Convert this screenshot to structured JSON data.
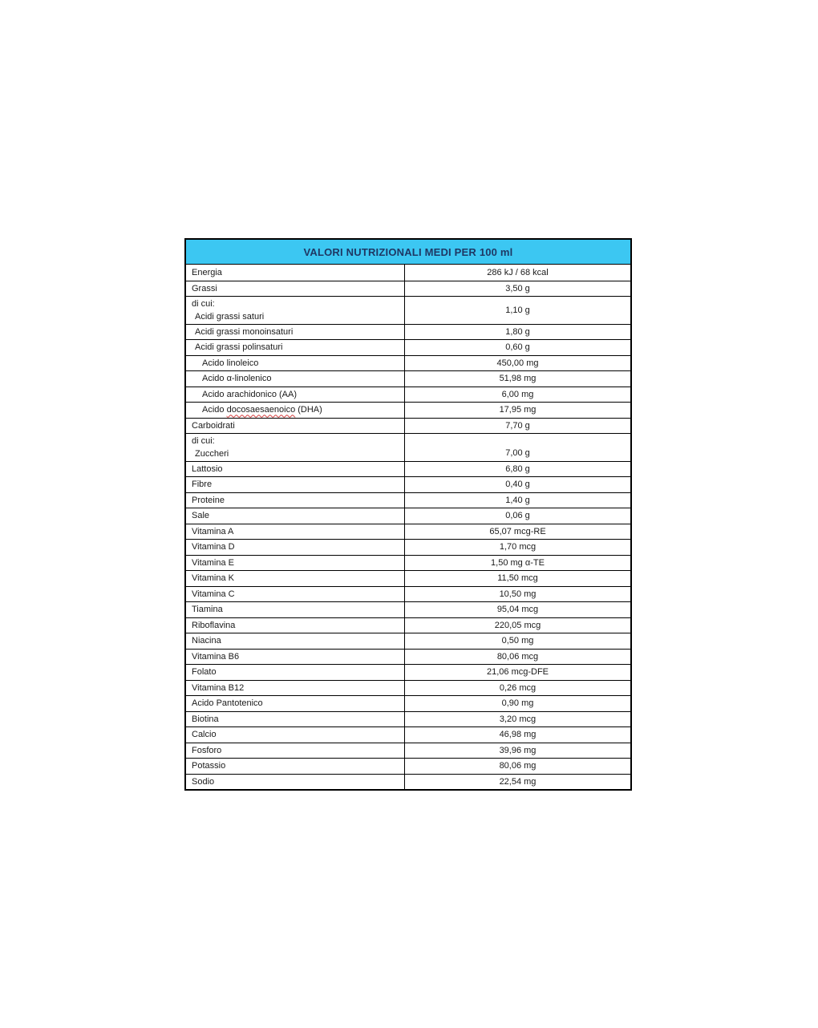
{
  "document": {
    "background": "#ffffff"
  },
  "table": {
    "title": "VALORI NUTRIZIONALI MEDI PER 100 ml",
    "colors": {
      "header_background": "#3cc7f2",
      "header_text": "#1f3864",
      "body_text": "#1a1a1a",
      "border": "#000000",
      "spellcheck_underline": "#d43c3c"
    },
    "rows": [
      {
        "label": "Energia",
        "indent": 0,
        "value": "286 kJ / 68 kcal"
      },
      {
        "label": "Grassi",
        "indent": 0,
        "value": "3,50 g"
      },
      {
        "label_lines": [
          {
            "text": "di cui:",
            "indent": 0
          },
          {
            "text": "Acidi grassi saturi",
            "indent": 1
          }
        ],
        "value": "1,10 g",
        "value_align": "center"
      },
      {
        "label": "Acidi grassi monoinsaturi",
        "indent": 1,
        "value": "1,80 g"
      },
      {
        "label": "Acidi grassi polinsaturi",
        "indent": 1,
        "value": "0,60 g"
      },
      {
        "label": "Acido linoleico",
        "indent": 2,
        "value": "450,00 mg"
      },
      {
        "label": "Acido α-linolenico",
        "indent": 2,
        "value": "51,98 mg"
      },
      {
        "label": "Acido arachidonico (AA)",
        "indent": 2,
        "value": "6,00 mg"
      },
      {
        "label_parts": {
          "pre": "Acido ",
          "misspelled": "docosaesaenoico",
          "post": " (DHA)"
        },
        "indent": 2,
        "value": "17,95 mg"
      },
      {
        "label": "Carboidrati",
        "indent": 0,
        "value": "7,70 g"
      },
      {
        "label_lines": [
          {
            "text": "di cui:",
            "indent": 0
          },
          {
            "text": "Zuccheri",
            "indent": 1
          }
        ],
        "value": "7,00 g",
        "value_align": "bottom"
      },
      {
        "label": "Lattosio",
        "indent": 0,
        "value": "6,80 g"
      },
      {
        "label": "Fibre",
        "indent": 0,
        "value": "0,40 g"
      },
      {
        "label": "Proteine",
        "indent": 0,
        "value": "1,40 g"
      },
      {
        "label": "Sale",
        "indent": 0,
        "value": "0,06 g"
      },
      {
        "label": "Vitamina A",
        "indent": 0,
        "value": "65,07 mcg-RE"
      },
      {
        "label": "Vitamina D",
        "indent": 0,
        "value": "1,70 mcg"
      },
      {
        "label": "Vitamina E",
        "indent": 0,
        "value": "1,50 mg α-TE"
      },
      {
        "label": "Vitamina K",
        "indent": 0,
        "value": "11,50 mcg"
      },
      {
        "label": "Vitamina C",
        "indent": 0,
        "value": "10,50 mg"
      },
      {
        "label": "Tiamina",
        "indent": 0,
        "value": "95,04 mcg"
      },
      {
        "label": "Riboflavina",
        "indent": 0,
        "value": "220,05 mcg"
      },
      {
        "label": "Niacina",
        "indent": 0,
        "value": "0,50 mg"
      },
      {
        "label": "Vitamina B6",
        "indent": 0,
        "value": "80,06 mcg"
      },
      {
        "label": "Folato",
        "indent": 0,
        "value": "21,06 mcg-DFE"
      },
      {
        "label": "Vitamina B12",
        "indent": 0,
        "value": "0,26 mcg"
      },
      {
        "label": "Acido Pantotenico",
        "indent": 0,
        "value": "0,90 mg"
      },
      {
        "label": "Biotina",
        "indent": 0,
        "value": "3,20 mcg"
      },
      {
        "label": "Calcio",
        "indent": 0,
        "value": "46,98 mg"
      },
      {
        "label": "Fosforo",
        "indent": 0,
        "value": "39,96 mg"
      },
      {
        "label": "Potassio",
        "indent": 0,
        "value": "80,06 mg"
      },
      {
        "label": "Sodio",
        "indent": 0,
        "value": "22,54 mg"
      }
    ]
  }
}
